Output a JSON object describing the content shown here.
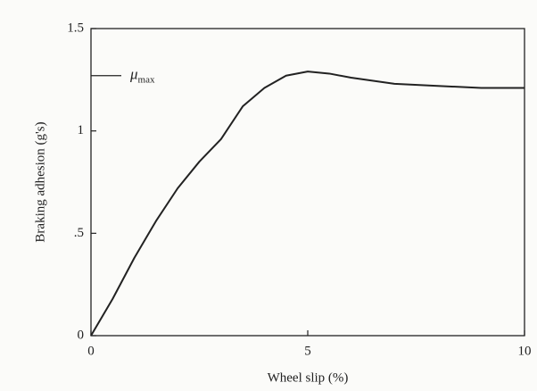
{
  "chart_data": {
    "type": "line",
    "xlabel": "Wheel slip (%)",
    "ylabel": "Braking adhesion (g's)",
    "x": [
      0,
      0.5,
      1,
      1.5,
      2,
      2.5,
      3,
      3.5,
      4,
      4.5,
      5,
      5.5,
      6,
      7,
      8,
      9,
      10
    ],
    "series": [
      {
        "color": "#222222",
        "values": [
          0,
          0.18,
          0.38,
          0.56,
          0.72,
          0.85,
          0.96,
          1.12,
          1.21,
          1.27,
          1.29,
          1.28,
          1.26,
          1.23,
          1.22,
          1.21,
          1.21
        ]
      }
    ],
    "xlim": [
      0,
      10
    ],
    "xticks": [
      0,
      5,
      10
    ],
    "ylim": [
      0,
      1.5
    ],
    "yticks": [
      0,
      {
        "value": 0.5,
        "label": ".5"
      },
      1,
      1.5
    ],
    "annotation": {
      "text": "μ",
      "subscript": "max",
      "y": 1.27
    }
  }
}
